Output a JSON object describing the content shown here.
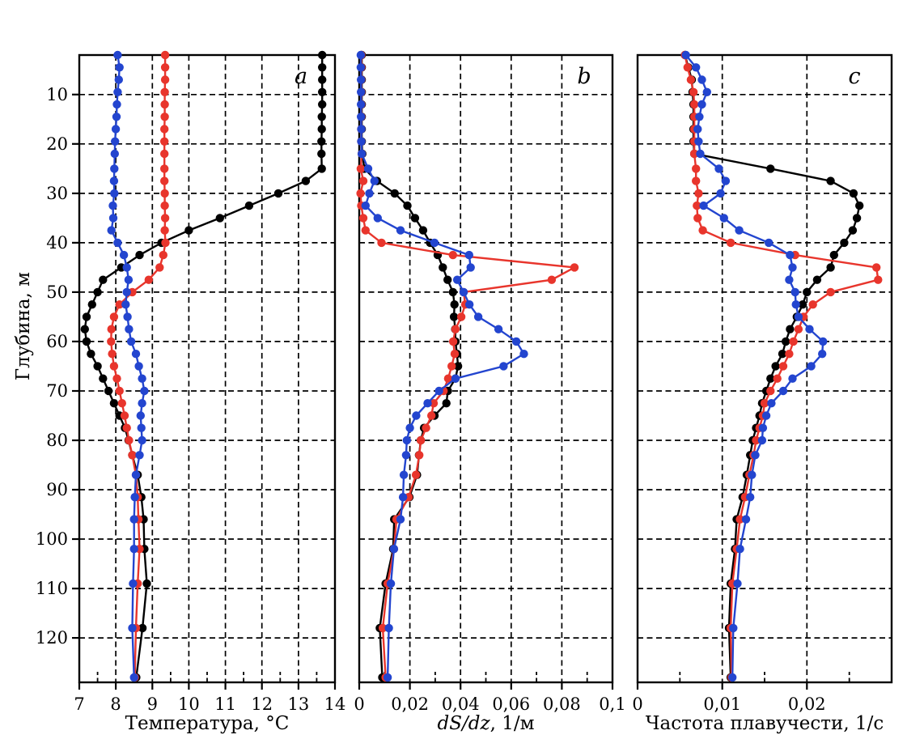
{
  "figure": {
    "background": "#ffffff",
    "y_axis": {
      "label": "Глубина, м",
      "tick_values": [
        10,
        20,
        30,
        40,
        50,
        60,
        70,
        80,
        90,
        100,
        110,
        120
      ],
      "tick_labels": [
        "10",
        "20",
        "30",
        "40",
        "50",
        "60",
        "70",
        "80",
        "90",
        "100",
        "110",
        "120"
      ]
    },
    "panels": [
      {
        "letter": "a",
        "x_label_italic": "",
        "x_label_rest": "Температура, °C"
      },
      {
        "letter": "b",
        "x_label_italic": "dS/dz",
        "x_label_rest": ", 1/м"
      },
      {
        "letter": "c",
        "x_label_italic": "",
        "x_label_rest": "Частота плавучести, 1/с"
      }
    ],
    "colors": {
      "series_black": "#000000",
      "series_red": "#e8352c",
      "series_blue": "#2345cf",
      "frame": "#000000",
      "grid": "#000000"
    }
  },
  "chart_data": [
    {
      "type": "line",
      "panel": "a",
      "title": "a",
      "xlabel": "Температура, °C",
      "ylabel": "Глубина, м",
      "xlim": [
        7,
        14
      ],
      "ylim": [
        2,
        129
      ],
      "y_inverted": true,
      "grid": true,
      "x_tick_values": [
        7,
        8,
        9,
        10,
        11,
        12,
        13,
        14
      ],
      "x_tick_labels": [
        "7",
        "8",
        "9",
        "10",
        "11",
        "12",
        "13",
        "14"
      ],
      "x_minor_step": 0.5,
      "depths": [
        2,
        4.5,
        7,
        9.5,
        12,
        14.5,
        17,
        19.5,
        22,
        25,
        27.5,
        30,
        32.5,
        35,
        37.5,
        40,
        42.5,
        45,
        47.5,
        50,
        52.5,
        55,
        57.5,
        60,
        62.5,
        65,
        67.5,
        70,
        72.5,
        75,
        77.5,
        80,
        83,
        87,
        91.5,
        96,
        102,
        109,
        118,
        128
      ],
      "series": [
        {
          "name": "black",
          "color": "#000000",
          "values": [
            13.65,
            13.65,
            13.65,
            13.65,
            13.65,
            13.64,
            13.64,
            13.63,
            13.63,
            13.64,
            13.2,
            12.45,
            11.65,
            10.85,
            10.0,
            9.25,
            8.65,
            8.15,
            7.65,
            7.5,
            7.35,
            7.2,
            7.15,
            7.2,
            7.32,
            7.5,
            7.65,
            7.8,
            7.95,
            8.1,
            8.25,
            8.35,
            8.45,
            8.6,
            8.7,
            8.76,
            8.78,
            8.85,
            8.73,
            8.56
          ]
        },
        {
          "name": "red",
          "color": "#e8352c",
          "values": [
            9.35,
            9.35,
            9.35,
            9.34,
            9.34,
            9.34,
            9.33,
            9.33,
            9.33,
            9.33,
            9.33,
            9.34,
            9.34,
            9.35,
            9.34,
            9.36,
            9.3,
            9.2,
            8.9,
            8.45,
            8.1,
            7.95,
            7.88,
            7.87,
            7.9,
            7.95,
            8.03,
            8.1,
            8.17,
            8.24,
            8.3,
            8.36,
            8.45,
            8.55,
            8.6,
            8.62,
            8.65,
            8.6,
            8.55,
            8.52
          ]
        },
        {
          "name": "blue",
          "color": "#2345cf",
          "values": [
            8.05,
            8.1,
            8.08,
            8.05,
            8.03,
            8.02,
            8.0,
            7.98,
            7.97,
            7.96,
            7.95,
            7.96,
            7.92,
            7.93,
            7.88,
            8.05,
            8.22,
            8.3,
            8.35,
            8.3,
            8.27,
            8.32,
            8.36,
            8.42,
            8.55,
            8.63,
            8.72,
            8.78,
            8.72,
            8.68,
            8.7,
            8.72,
            8.65,
            8.55,
            8.52,
            8.5,
            8.5,
            8.47,
            8.45,
            8.5
          ]
        }
      ]
    },
    {
      "type": "line",
      "panel": "b",
      "title": "b",
      "xlabel": "dS/dz, 1/м",
      "ylabel": "Глубина, м",
      "xlim": [
        0,
        0.1
      ],
      "ylim": [
        2,
        129
      ],
      "y_inverted": true,
      "grid": true,
      "x_tick_values": [
        0,
        0.02,
        0.04,
        0.06,
        0.08,
        0.1
      ],
      "x_tick_labels": [
        "0",
        "0,02",
        "0,04",
        "0,06",
        "0,08",
        "0,1"
      ],
      "x_minor_step": 0.01,
      "depths": [
        2,
        4.5,
        7,
        9.5,
        12,
        14.5,
        17,
        19.5,
        22,
        25,
        27.5,
        30,
        32.5,
        35,
        37.5,
        40,
        42.5,
        45,
        47.5,
        50,
        52.5,
        55,
        57.5,
        60,
        62.5,
        65,
        67.5,
        70,
        72.5,
        75,
        77.5,
        80,
        83,
        87,
        91.5,
        96,
        102,
        109,
        118,
        128
      ],
      "series": [
        {
          "name": "black",
          "color": "#000000",
          "values": [
            0.001,
            0.001,
            0.001,
            0.001,
            0.001,
            0.001,
            0.001,
            0.001,
            0.0012,
            0.002,
            0.007,
            0.014,
            0.019,
            0.022,
            0.0252,
            0.028,
            0.031,
            0.033,
            0.0349,
            0.037,
            0.0376,
            0.0374,
            0.0379,
            0.038,
            0.0386,
            0.039,
            0.038,
            0.035,
            0.0344,
            0.0297,
            0.0256,
            0.0243,
            0.0236,
            0.0228,
            0.0198,
            0.0138,
            0.0134,
            0.0104,
            0.0081,
            0.0091
          ]
        },
        {
          "name": "red",
          "color": "#e8352c",
          "values": [
            0.0008,
            0.0008,
            0.0008,
            0.0008,
            0.0008,
            0.0008,
            0.0008,
            0.0008,
            0.001,
            0.0006,
            0.0016,
            0.0005,
            0.0008,
            0.0016,
            0.0025,
            0.0088,
            0.037,
            0.085,
            0.076,
            0.0412,
            0.0419,
            0.0403,
            0.038,
            0.0371,
            0.0377,
            0.0365,
            0.0351,
            0.0333,
            0.0294,
            0.0285,
            0.0264,
            0.0243,
            0.0237,
            0.0224,
            0.0195,
            0.0147,
            0.0137,
            0.0112,
            0.0093,
            0.0104
          ]
        },
        {
          "name": "blue",
          "color": "#2345cf",
          "values": [
            0.0006,
            0.0006,
            0.0007,
            0.0007,
            0.0007,
            0.0007,
            0.0008,
            0.0008,
            0.001,
            0.0035,
            0.006,
            0.004,
            0.0025,
            0.0073,
            0.0163,
            0.0297,
            0.0434,
            0.044,
            0.0387,
            0.0412,
            0.0435,
            0.047,
            0.055,
            0.062,
            0.065,
            0.057,
            0.038,
            0.0315,
            0.027,
            0.0225,
            0.02,
            0.0188,
            0.0185,
            0.0176,
            0.0173,
            0.0163,
            0.0137,
            0.0125,
            0.0117,
            0.0112
          ]
        }
      ]
    },
    {
      "type": "line",
      "panel": "c",
      "title": "c",
      "xlabel": "Частота плавучести, 1/с",
      "ylabel": "Глубина, м",
      "xlim": [
        0,
        0.03
      ],
      "ylim": [
        2,
        129
      ],
      "y_inverted": true,
      "grid": true,
      "x_tick_values": [
        0,
        0.01,
        0.02
      ],
      "x_tick_labels": [
        "0",
        "0,01",
        "0,02"
      ],
      "x_minor_step": 0.005,
      "depths": [
        2,
        4.5,
        7,
        9.5,
        12,
        14.5,
        17,
        19.5,
        22,
        25,
        27.5,
        30,
        32.5,
        35,
        37.5,
        40,
        42.5,
        45,
        47.5,
        50,
        52.5,
        55,
        57.5,
        60,
        62.5,
        65,
        67.5,
        70,
        72.5,
        75,
        77.5,
        80,
        83,
        87,
        91.5,
        96,
        102,
        109,
        118,
        128
      ],
      "series": [
        {
          "name": "black",
          "color": "#000000",
          "values": [
            0.0056,
            0.006,
            0.0064,
            0.0065,
            0.0066,
            0.0066,
            0.0066,
            0.0066,
            0.0067,
            0.0157,
            0.0228,
            0.0255,
            0.0262,
            0.0259,
            0.0254,
            0.0244,
            0.0232,
            0.0228,
            0.0212,
            0.02,
            0.0195,
            0.0188,
            0.018,
            0.0175,
            0.0171,
            0.0163,
            0.0157,
            0.0152,
            0.0147,
            0.0144,
            0.014,
            0.0136,
            0.0133,
            0.0129,
            0.0124,
            0.0117,
            0.0115,
            0.011,
            0.0108,
            0.011
          ]
        },
        {
          "name": "red",
          "color": "#e8352c",
          "values": [
            0.0056,
            0.0059,
            0.0063,
            0.0066,
            0.0067,
            0.0067,
            0.0067,
            0.0067,
            0.0067,
            0.0069,
            0.0069,
            0.0072,
            0.007,
            0.0071,
            0.0077,
            0.011,
            0.0186,
            0.0282,
            0.0284,
            0.0228,
            0.0207,
            0.0196,
            0.019,
            0.0184,
            0.0179,
            0.0172,
            0.0165,
            0.0157,
            0.015,
            0.0148,
            0.0144,
            0.014,
            0.0137,
            0.0132,
            0.0127,
            0.0121,
            0.0117,
            0.0112,
            0.011,
            0.0111
          ]
        },
        {
          "name": "blue",
          "color": "#2345cf",
          "values": [
            0.0057,
            0.0069,
            0.0076,
            0.0082,
            0.0076,
            0.0073,
            0.0071,
            0.0072,
            0.0074,
            0.0096,
            0.0104,
            0.0098,
            0.0078,
            0.0102,
            0.012,
            0.0155,
            0.018,
            0.0183,
            0.0179,
            0.0186,
            0.0187,
            0.019,
            0.0203,
            0.0219,
            0.0218,
            0.0205,
            0.0183,
            0.0172,
            0.0158,
            0.0152,
            0.0148,
            0.0147,
            0.0139,
            0.0135,
            0.0133,
            0.0128,
            0.0121,
            0.0118,
            0.0113,
            0.0112
          ]
        }
      ]
    }
  ]
}
